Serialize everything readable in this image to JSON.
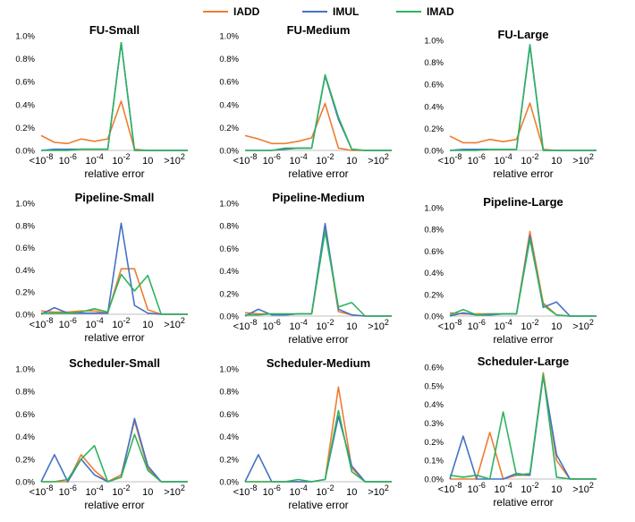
{
  "legend": [
    {
      "name": "IADD",
      "color": "#ed7d31"
    },
    {
      "name": "IMUL",
      "color": "#4472c4"
    },
    {
      "name": "IMAD",
      "color": "#2db35e"
    }
  ],
  "x_tick_labels": [
    {
      "base": "<10",
      "exp": "-8"
    },
    {
      "base": "10",
      "exp": "-6"
    },
    {
      "base": "10",
      "exp": "-4"
    },
    {
      "base": "10",
      "exp": "-2"
    },
    {
      "base": "10",
      "exp": ""
    },
    {
      "base": ">10",
      "exp": "2"
    }
  ],
  "chart_data": [
    {
      "type": "line",
      "title": "FU-Small",
      "xlabel": "relative error",
      "yticks": [
        "0.0%",
        "0.2%",
        "0.4%",
        "0.6%",
        "0.8%",
        "1.0%"
      ],
      "ylim": [
        0,
        1.0
      ],
      "series": [
        {
          "name": "IADD",
          "values": [
            0.13,
            0.07,
            0.06,
            0.1,
            0.08,
            0.1,
            0.43,
            0.01,
            0,
            0,
            0,
            0
          ]
        },
        {
          "name": "IMUL",
          "values": [
            0,
            0.01,
            0.01,
            0.01,
            0.01,
            0.01,
            0.94,
            0,
            0,
            0,
            0,
            0
          ]
        },
        {
          "name": "IMAD",
          "values": [
            0,
            0,
            0,
            0.01,
            0.01,
            0.01,
            0.94,
            0,
            0,
            0,
            0,
            0
          ]
        }
      ]
    },
    {
      "type": "line",
      "title": "FU-Medium",
      "xlabel": "relative error",
      "yticks": [
        "0.0%",
        "0.2%",
        "0.4%",
        "0.6%",
        "0.8%",
        "1.0%"
      ],
      "ylim": [
        0,
        1.0
      ],
      "series": [
        {
          "name": "IADD",
          "values": [
            0.13,
            0.1,
            0.06,
            0.06,
            0.08,
            0.11,
            0.41,
            0.02,
            0,
            0,
            0,
            0
          ]
        },
        {
          "name": "IMUL",
          "values": [
            0,
            0,
            0,
            0.01,
            0.02,
            0.02,
            0.65,
            0.27,
            0.01,
            0,
            0,
            0
          ]
        },
        {
          "name": "IMAD",
          "values": [
            0,
            0,
            0,
            0.02,
            0.02,
            0.02,
            0.66,
            0.29,
            0.01,
            0,
            0,
            0
          ]
        }
      ]
    },
    {
      "type": "line",
      "title": "FU-Large",
      "xlabel": "relative error",
      "yticks": [
        "0.0%",
        "0.2%",
        "0.4%",
        "0.6%",
        "0.8%",
        "1.0%"
      ],
      "ylim": [
        0,
        1.0
      ],
      "series": [
        {
          "name": "IADD",
          "values": [
            0.13,
            0.07,
            0.07,
            0.1,
            0.08,
            0.1,
            0.43,
            0.01,
            0,
            0,
            0,
            0
          ]
        },
        {
          "name": "IMUL",
          "values": [
            0,
            0.01,
            0.01,
            0.01,
            0.01,
            0.01,
            0.96,
            0,
            0,
            0,
            0,
            0
          ]
        },
        {
          "name": "IMAD",
          "values": [
            0,
            0,
            0,
            0.01,
            0.01,
            0.01,
            0.95,
            0,
            0,
            0,
            0,
            0
          ]
        }
      ]
    },
    {
      "type": "line",
      "title": "Pipeline-Small",
      "xlabel": "relative error",
      "yticks": [
        "0.0%",
        "0.2%",
        "0.4%",
        "0.6%",
        "0.8%",
        "1.0%"
      ],
      "ylim": [
        0,
        1.0
      ],
      "series": [
        {
          "name": "IADD",
          "values": [
            0.03,
            0.02,
            0.02,
            0.03,
            0.03,
            0.01,
            0.41,
            0.41,
            0.04,
            0,
            0,
            0
          ]
        },
        {
          "name": "IMUL",
          "values": [
            0,
            0.06,
            0.01,
            0.01,
            0.01,
            0.01,
            0.82,
            0.08,
            0.01,
            0,
            0,
            0
          ]
        },
        {
          "name": "IMAD",
          "values": [
            0.01,
            0.01,
            0.01,
            0.02,
            0.05,
            0.02,
            0.36,
            0.21,
            0.35,
            0,
            0,
            0
          ]
        }
      ]
    },
    {
      "type": "line",
      "title": "Pipeline-Medium",
      "xlabel": "relative error",
      "yticks": [
        "0.0%",
        "0.2%",
        "0.4%",
        "0.6%",
        "0.8%",
        "1.0%"
      ],
      "ylim": [
        0,
        1.0
      ],
      "series": [
        {
          "name": "IADD",
          "values": [
            0.03,
            0.02,
            0.02,
            0.01,
            0.02,
            0.02,
            0.79,
            0.04,
            0.01,
            0,
            0,
            0
          ]
        },
        {
          "name": "IMUL",
          "values": [
            0,
            0.06,
            0.01,
            0.01,
            0.02,
            0.02,
            0.82,
            0.06,
            0.01,
            0,
            0,
            0
          ]
        },
        {
          "name": "IMAD",
          "values": [
            0.01,
            0.01,
            0.02,
            0.02,
            0.02,
            0.02,
            0.75,
            0.08,
            0.12,
            0,
            0,
            0
          ]
        }
      ]
    },
    {
      "type": "line",
      "title": "Pipeline-Large",
      "xlabel": "relative error",
      "yticks": [
        "0.0%",
        "0.2%",
        "0.4%",
        "0.6%",
        "0.8%",
        "1.0%"
      ],
      "ylim": [
        0,
        1.0
      ],
      "series": [
        {
          "name": "IADD",
          "values": [
            0.03,
            0.02,
            0.02,
            0.02,
            0.02,
            0.02,
            0.78,
            0.12,
            0.01,
            0,
            0,
            0
          ]
        },
        {
          "name": "IMUL",
          "values": [
            0,
            0.03,
            0.01,
            0.01,
            0.02,
            0.02,
            0.74,
            0.08,
            0.13,
            0,
            0,
            0
          ]
        },
        {
          "name": "IMAD",
          "values": [
            0.01,
            0.06,
            0.01,
            0.02,
            0.02,
            0.02,
            0.71,
            0.1,
            0.01,
            0,
            0,
            0
          ]
        }
      ]
    },
    {
      "type": "line",
      "title": "Scheduler-Small",
      "xlabel": "relative error",
      "yticks": [
        "0.0%",
        "0.2%",
        "0.4%",
        "0.6%",
        "0.8%",
        "1.0%"
      ],
      "ylim": [
        0,
        1.0
      ],
      "series": [
        {
          "name": "IADD",
          "values": [
            0,
            0,
            0,
            0.24,
            0.1,
            0,
            0.06,
            0.54,
            0.12,
            0,
            0,
            0
          ]
        },
        {
          "name": "IMUL",
          "values": [
            0,
            0.24,
            0,
            0.2,
            0.06,
            0,
            0.04,
            0.56,
            0.14,
            0,
            0,
            0
          ]
        },
        {
          "name": "IMAD",
          "values": [
            0,
            0,
            0.02,
            0.2,
            0.32,
            0,
            0.04,
            0.42,
            0.1,
            0,
            0,
            0
          ]
        }
      ]
    },
    {
      "type": "line",
      "title": "Scheduler-Medium",
      "xlabel": "relative error",
      "yticks": [
        "0.0%",
        "0.2%",
        "0.4%",
        "0.6%",
        "0.8%",
        "1.0%"
      ],
      "ylim": [
        0,
        1.0
      ],
      "series": [
        {
          "name": "IADD",
          "values": [
            0,
            0,
            0,
            0,
            0,
            0,
            0.02,
            0.84,
            0.12,
            0,
            0,
            0
          ]
        },
        {
          "name": "IMUL",
          "values": [
            0,
            0.24,
            0,
            0,
            0,
            0,
            0.02,
            0.58,
            0.14,
            0,
            0,
            0
          ]
        },
        {
          "name": "IMAD",
          "values": [
            0,
            0,
            0,
            0,
            0.02,
            0,
            0.02,
            0.63,
            0.09,
            0,
            0,
            0
          ]
        }
      ]
    },
    {
      "type": "line",
      "title": "Scheduler-Large",
      "xlabel": "relative error",
      "yticks": [
        "0.0%",
        "0.1%",
        "0.2%",
        "0.3%",
        "0.4%",
        "0.5%",
        "0.6%"
      ],
      "ylim": [
        0,
        0.6
      ],
      "series": [
        {
          "name": "IADD",
          "values": [
            0,
            0,
            0,
            0.25,
            0,
            0.02,
            0.02,
            0.57,
            0.1,
            0,
            0,
            0
          ]
        },
        {
          "name": "IMUL",
          "values": [
            0,
            0.23,
            0,
            0,
            0,
            0.03,
            0.02,
            0.55,
            0.13,
            0,
            0,
            0
          ]
        },
        {
          "name": "IMAD",
          "values": [
            0.02,
            0.01,
            0.02,
            0,
            0.36,
            0.02,
            0.03,
            0.56,
            0.01,
            0,
            0,
            0
          ]
        }
      ]
    }
  ]
}
